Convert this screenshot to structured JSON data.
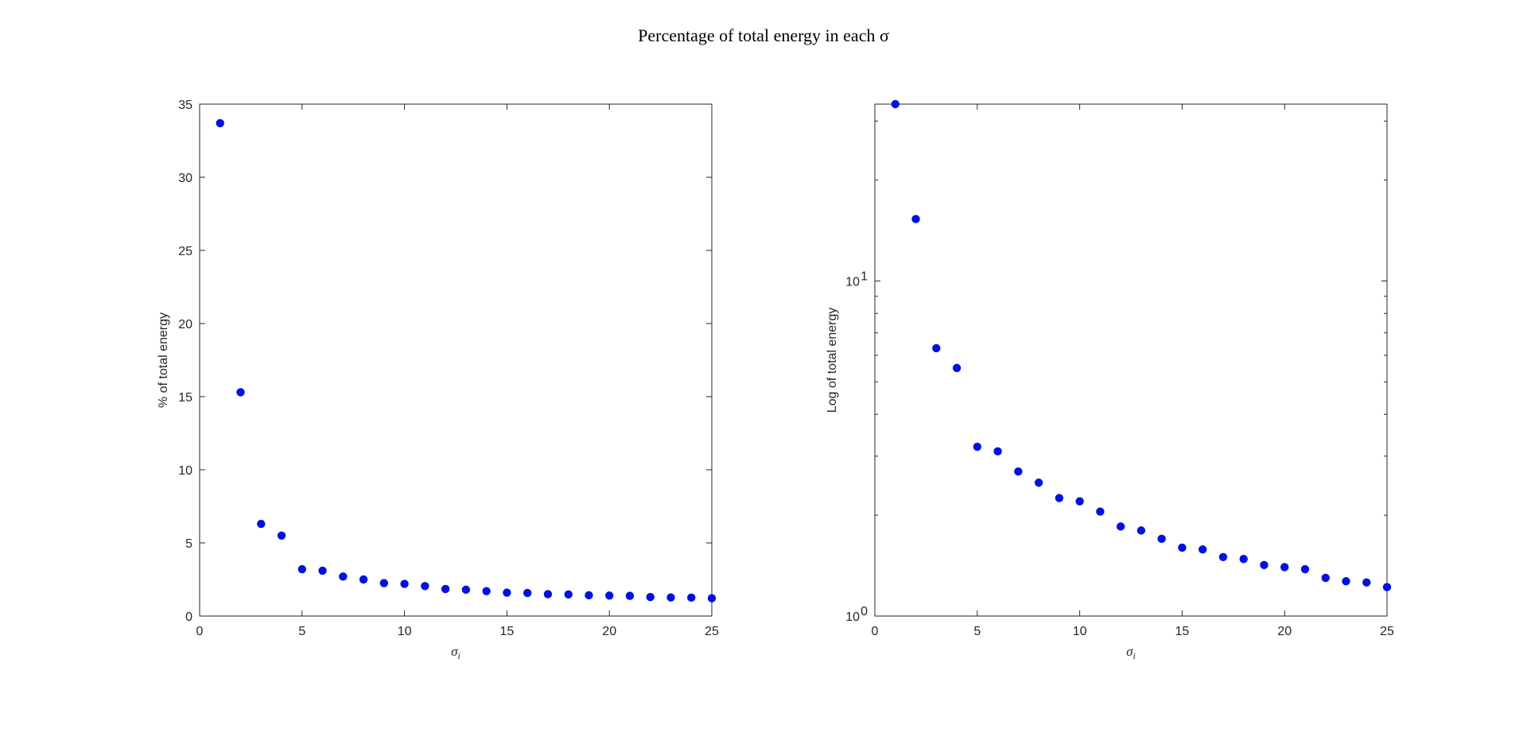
{
  "figure": {
    "suptitle": "Percentage of total energy in each σ"
  },
  "colors": {
    "marker": "#0011e0",
    "axis": "#262626",
    "background": "#ffffff"
  },
  "chart_data": [
    {
      "type": "scatter",
      "xlabel_symbol": "σ",
      "xlabel_subscript": "i",
      "ylabel": "% of total energy",
      "xlim": [
        0,
        25
      ],
      "ylim": [
        0,
        35
      ],
      "yscale": "linear",
      "x_ticks": [
        0,
        5,
        10,
        15,
        20,
        25
      ],
      "y_ticks": [
        0,
        5,
        10,
        15,
        20,
        25,
        30,
        35
      ],
      "grid": false,
      "legend": "none",
      "series": [
        {
          "x": [
            1,
            2,
            3,
            4,
            5,
            6,
            7,
            8,
            9,
            10,
            11,
            12,
            13,
            14,
            15,
            16,
            17,
            18,
            19,
            20,
            21,
            22,
            23,
            24,
            25
          ],
          "y": [
            33.7,
            15.3,
            6.3,
            5.5,
            3.2,
            3.1,
            2.7,
            2.5,
            2.25,
            2.2,
            2.05,
            1.85,
            1.8,
            1.7,
            1.6,
            1.58,
            1.5,
            1.48,
            1.42,
            1.4,
            1.38,
            1.3,
            1.27,
            1.26,
            1.22
          ]
        }
      ]
    },
    {
      "type": "scatter",
      "xlabel_symbol": "σ",
      "xlabel_subscript": "i",
      "ylabel": "Log of total energy",
      "xlim": [
        0,
        25
      ],
      "ylim": [
        1,
        33.7
      ],
      "yscale": "log",
      "x_ticks": [
        0,
        5,
        10,
        15,
        20,
        25
      ],
      "y_ticks": [
        {
          "value": 1,
          "base": "10",
          "exp": "0"
        },
        {
          "value": 10,
          "base": "10",
          "exp": "1"
        }
      ],
      "grid": false,
      "legend": "none",
      "series": [
        {
          "x": [
            1,
            2,
            3,
            4,
            5,
            6,
            7,
            8,
            9,
            10,
            11,
            12,
            13,
            14,
            15,
            16,
            17,
            18,
            19,
            20,
            21,
            22,
            23,
            24,
            25
          ],
          "y": [
            33.7,
            15.3,
            6.3,
            5.5,
            3.2,
            3.1,
            2.7,
            2.5,
            2.25,
            2.2,
            2.05,
            1.85,
            1.8,
            1.7,
            1.6,
            1.58,
            1.5,
            1.48,
            1.42,
            1.4,
            1.38,
            1.3,
            1.27,
            1.26,
            1.22
          ]
        }
      ]
    }
  ]
}
